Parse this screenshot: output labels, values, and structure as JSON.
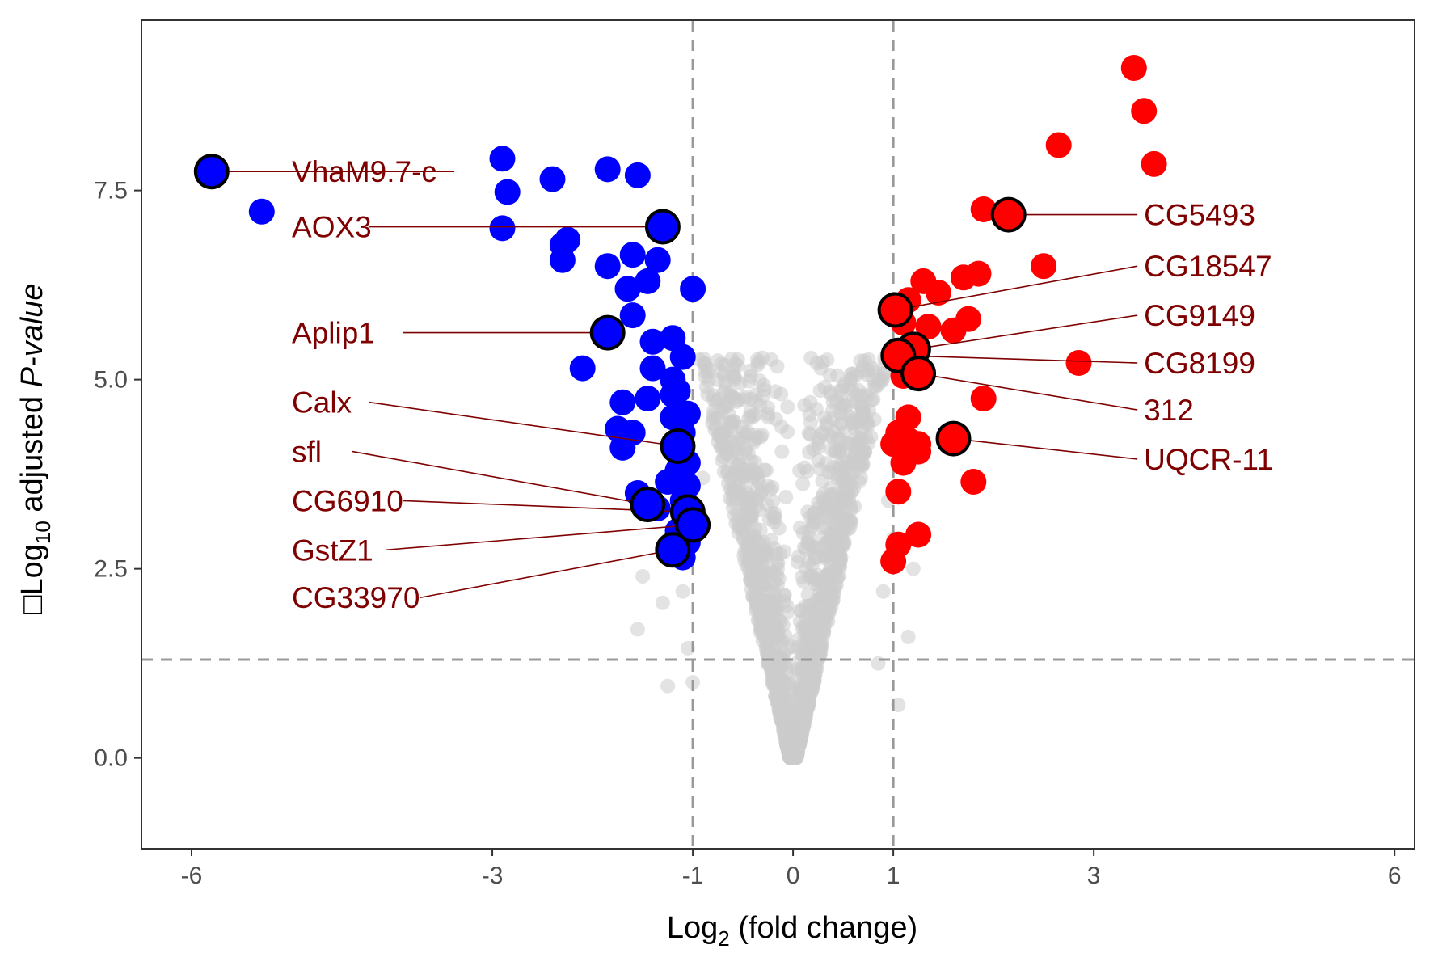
{
  "chart_data": {
    "type": "scatter",
    "title": "",
    "xlabel": {
      "prefix": "Log",
      "sub": "2",
      "suffix": " (fold change)"
    },
    "ylabel": {
      "lead": "□",
      "prefix": "Log",
      "sub": "10",
      "middle": " adjusted ",
      "italic": "P-value"
    },
    "xlim": [
      -6.5,
      6.2
    ],
    "ylim": [
      -1.2,
      9.75
    ],
    "x_ticks": [
      {
        "value": -6,
        "label": "-6"
      },
      {
        "value": -3,
        "label": "-3"
      },
      {
        "value": -1,
        "label": "-1"
      },
      {
        "value": 0,
        "label": "0"
      },
      {
        "value": 1,
        "label": "1"
      },
      {
        "value": 3,
        "label": "3"
      },
      {
        "value": 6,
        "label": "6"
      }
    ],
    "y_ticks": [
      {
        "value": 0,
        "label": "0.0"
      },
      {
        "value": 2.5,
        "label": "2.5"
      },
      {
        "value": 5,
        "label": "5.0"
      },
      {
        "value": 7.5,
        "label": "7.5"
      }
    ],
    "thresholds": {
      "x": [
        -1,
        1
      ],
      "y": 1.3
    },
    "grid": false,
    "legend": "none",
    "colors": {
      "down": "#0000ff",
      "up": "#ff0000",
      "ns": "#cccccc",
      "label": "#7f0000",
      "threshold": "#999999",
      "highlight_outline": "#000000"
    },
    "series": [
      {
        "group": "down",
        "points": [
          [
            -5.8,
            7.75
          ],
          [
            -5.3,
            7.22
          ],
          [
            -2.9,
            7.92
          ],
          [
            -2.85,
            7.48
          ],
          [
            -2.9,
            7.0
          ],
          [
            -2.4,
            7.65
          ],
          [
            -1.85,
            7.78
          ],
          [
            -1.55,
            7.7
          ],
          [
            -2.3,
            6.78
          ],
          [
            -2.25,
            6.85
          ],
          [
            -2.3,
            6.58
          ],
          [
            -1.85,
            6.5
          ],
          [
            -1.6,
            6.65
          ],
          [
            -1.35,
            6.58
          ],
          [
            -1.65,
            6.2
          ],
          [
            -1.45,
            6.3
          ],
          [
            -1.0,
            6.2
          ],
          [
            -1.6,
            5.85
          ],
          [
            -1.4,
            5.5
          ],
          [
            -1.2,
            5.55
          ],
          [
            -2.1,
            5.15
          ],
          [
            -1.4,
            5.15
          ],
          [
            -1.2,
            5.0
          ],
          [
            -1.1,
            5.3
          ],
          [
            -1.7,
            4.7
          ],
          [
            -1.45,
            4.75
          ],
          [
            -1.2,
            4.8
          ],
          [
            -1.15,
            4.85
          ],
          [
            -1.05,
            4.55
          ],
          [
            -1.2,
            4.5
          ],
          [
            -1.75,
            4.35
          ],
          [
            -1.6,
            4.3
          ],
          [
            -1.7,
            4.1
          ],
          [
            -1.1,
            4.3
          ],
          [
            -1.15,
            3.8
          ],
          [
            -1.05,
            3.9
          ],
          [
            -1.25,
            3.65
          ],
          [
            -1.05,
            3.6
          ],
          [
            -1.55,
            3.5
          ],
          [
            -1.35,
            3.3
          ],
          [
            -1.1,
            3.4
          ],
          [
            -1.0,
            3.2
          ],
          [
            -1.15,
            3.0
          ],
          [
            -1.05,
            2.85
          ],
          [
            -1.1,
            2.65
          ]
        ]
      },
      {
        "group": "up",
        "points": [
          [
            3.4,
            9.12
          ],
          [
            3.5,
            8.55
          ],
          [
            2.65,
            8.1
          ],
          [
            3.6,
            7.85
          ],
          [
            1.9,
            7.25
          ],
          [
            2.1,
            7.2
          ],
          [
            1.7,
            6.35
          ],
          [
            1.85,
            6.4
          ],
          [
            2.5,
            6.5
          ],
          [
            1.3,
            6.3
          ],
          [
            1.45,
            6.15
          ],
          [
            1.15,
            6.05
          ],
          [
            1.1,
            5.75
          ],
          [
            1.35,
            5.7
          ],
          [
            1.6,
            5.65
          ],
          [
            1.75,
            5.8
          ],
          [
            2.85,
            5.22
          ],
          [
            1.1,
            5.05
          ],
          [
            1.15,
            4.5
          ],
          [
            1.05,
            4.3
          ],
          [
            1.15,
            4.2
          ],
          [
            1.0,
            4.15
          ],
          [
            1.25,
            4.15
          ],
          [
            1.25,
            4.05
          ],
          [
            1.1,
            3.9
          ],
          [
            1.9,
            4.75
          ],
          [
            1.8,
            3.65
          ],
          [
            1.05,
            3.52
          ],
          [
            1.05,
            2.82
          ],
          [
            1.25,
            2.95
          ],
          [
            1.0,
            2.6
          ]
        ]
      },
      {
        "group": "highlighted",
        "points": [
          {
            "gene": "VhaM9.7-c",
            "x": -5.8,
            "y": 7.75,
            "color": "#0000ff"
          },
          {
            "gene": "AOX3",
            "x": -1.3,
            "y": 7.02,
            "color": "#0000ff"
          },
          {
            "gene": "Aplip1",
            "x": -1.85,
            "y": 5.62,
            "color": "#0000ff"
          },
          {
            "gene": "Calx",
            "x": -1.15,
            "y": 4.12,
            "color": "#0000ff"
          },
          {
            "gene": "sfl",
            "x": -1.45,
            "y": 3.35,
            "color": "#0000ff"
          },
          {
            "gene": "CG6910",
            "x": -1.05,
            "y": 3.25,
            "color": "#0000ff"
          },
          {
            "gene": "GstZ1",
            "x": -1.0,
            "y": 3.08,
            "color": "#0000ff"
          },
          {
            "gene": "CG33970",
            "x": -1.2,
            "y": 2.75,
            "color": "#0000ff"
          },
          {
            "gene": "CG5493",
            "x": 2.15,
            "y": 7.18,
            "color": "#ff0000"
          },
          {
            "gene": "CG18547",
            "x": 1.02,
            "y": 5.92,
            "color": "#ff0000"
          },
          {
            "gene": "CG9149",
            "x": 1.2,
            "y": 5.4,
            "color": "#ff0000"
          },
          {
            "gene": "CG8199",
            "x": 1.05,
            "y": 5.32,
            "color": "#ff0000"
          },
          {
            "gene": "312",
            "x": 1.25,
            "y": 5.08,
            "color": "#ff0000"
          },
          {
            "gene": "UQCR-11",
            "x": 1.6,
            "y": 4.22,
            "color": "#ff0000"
          }
        ]
      }
    ],
    "annotations": [
      {
        "text": "VhaM9.7-c",
        "x": -5.8,
        "y": 7.75,
        "label_x": -5.0,
        "label_y": 7.75,
        "anchor": "start"
      },
      {
        "text": "AOX3",
        "x": -1.3,
        "y": 7.02,
        "label_x": -5.0,
        "label_y": 7.02,
        "anchor": "start"
      },
      {
        "text": "Aplip1",
        "x": -1.85,
        "y": 5.62,
        "label_x": -5.0,
        "label_y": 5.62,
        "anchor": "start"
      },
      {
        "text": "Calx",
        "x": -1.15,
        "y": 4.12,
        "label_x": -5.0,
        "label_y": 4.7,
        "anchor": "start"
      },
      {
        "text": "sfl",
        "x": -1.45,
        "y": 3.35,
        "label_x": -5.0,
        "label_y": 4.05,
        "anchor": "start"
      },
      {
        "text": "CG6910",
        "x": -1.05,
        "y": 3.25,
        "label_x": -5.0,
        "label_y": 3.4,
        "anchor": "start"
      },
      {
        "text": "GstZ1",
        "x": -1.0,
        "y": 3.08,
        "label_x": -5.0,
        "label_y": 2.75,
        "anchor": "start"
      },
      {
        "text": "CG33970",
        "x": -1.2,
        "y": 2.75,
        "label_x": -5.0,
        "label_y": 2.12,
        "anchor": "start"
      },
      {
        "text": "CG5493",
        "x": 2.15,
        "y": 7.18,
        "label_x": 3.5,
        "label_y": 7.18,
        "anchor": "start"
      },
      {
        "text": "CG18547",
        "x": 1.02,
        "y": 5.92,
        "label_x": 3.5,
        "label_y": 6.5,
        "anchor": "start"
      },
      {
        "text": "CG9149",
        "x": 1.2,
        "y": 5.4,
        "label_x": 3.5,
        "label_y": 5.85,
        "anchor": "start"
      },
      {
        "text": "CG8199",
        "x": 1.05,
        "y": 5.32,
        "label_x": 3.5,
        "label_y": 5.22,
        "anchor": "start"
      },
      {
        "text": "312",
        "x": 1.25,
        "y": 5.08,
        "label_x": 3.5,
        "label_y": 4.6,
        "anchor": "start"
      },
      {
        "text": "UQCR-11",
        "x": 1.6,
        "y": 4.22,
        "label_x": 3.5,
        "label_y": 3.95,
        "anchor": "start"
      }
    ]
  }
}
